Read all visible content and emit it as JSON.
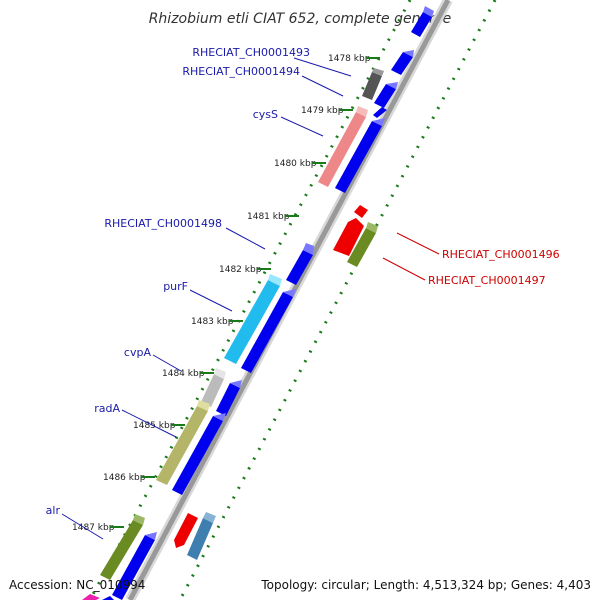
{
  "title": "Rhizobium etli CIAT 652, complete genome",
  "footer": {
    "accession": "Accession: NC_010994",
    "topology": "Topology: circular; Length: 4,513,324 bp; Genes: 4,403"
  },
  "colors": {
    "blue": "#0000ee",
    "label_blue": "#1a1aaa",
    "label_red": "#cc0000",
    "tick_green": "#1a7a1a",
    "backbone": "#999999"
  },
  "kbp_ticks": [
    {
      "pos": 1478,
      "label": "1478 kbp"
    },
    {
      "pos": 1479,
      "label": "1479 kbp"
    },
    {
      "pos": 1480,
      "label": "1480 kbp"
    },
    {
      "pos": 1481,
      "label": "1481 kbp"
    },
    {
      "pos": 1482,
      "label": "1482 kbp"
    },
    {
      "pos": 1483,
      "label": "1483 kbp"
    },
    {
      "pos": 1484,
      "label": "1484 kbp"
    },
    {
      "pos": 1485,
      "label": "1485 kbp"
    },
    {
      "pos": 1486,
      "label": "1486 kbp"
    },
    {
      "pos": 1487,
      "label": "1487 kbp"
    }
  ],
  "genes": [
    {
      "name": "RHECIAT_CH0001493",
      "color": "#555555"
    },
    {
      "name": "RHECIAT_CH0001494",
      "color": "#0000ee"
    },
    {
      "name": "cysS",
      "color": "#ee8888"
    },
    {
      "name": "RHECIAT_CH0001498",
      "color": "#0000ee"
    },
    {
      "name": "purF",
      "color": "#33ccee"
    },
    {
      "name": "cvpA",
      "color": "#bbbbbb"
    },
    {
      "name": "radA",
      "color": "#bbbb77"
    },
    {
      "name": "alr",
      "color": "#6a8a22"
    },
    {
      "name": "RHECIAT_CH0001496",
      "color": "#ee0000"
    },
    {
      "name": "RHECIAT_CH0001497",
      "color": "#6a8a22"
    }
  ]
}
